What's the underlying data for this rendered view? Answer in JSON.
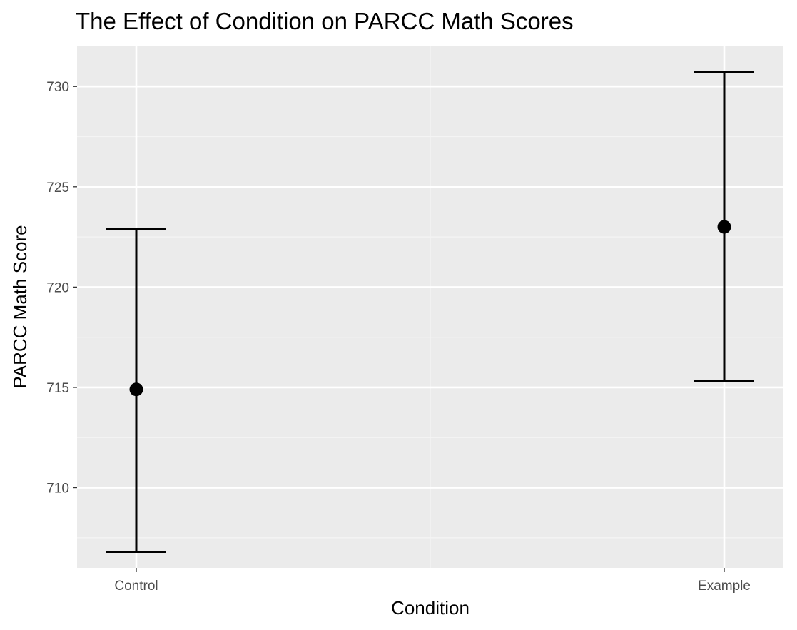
{
  "chart_data": {
    "type": "errorbar",
    "title": "The Effect of Condition on PARCC Math Scores",
    "xlabel": "Condition",
    "ylabel": "PARCC Math Score",
    "categories": [
      "Control",
      "Example"
    ],
    "means": [
      714.9,
      723.0
    ],
    "lower": [
      706.8,
      715.3
    ],
    "upper": [
      722.9,
      730.7
    ],
    "yticks": [
      710,
      715,
      720,
      725,
      730
    ],
    "ylim": [
      706.0,
      732.0
    ],
    "grid": true,
    "legend": "none",
    "colors": {
      "panel_background": "#ebebeb",
      "grid_major": "#ffffff",
      "grid_minor": "#f5f5f5",
      "marks": "#000000",
      "tick_text": "#4d4d4d"
    }
  }
}
